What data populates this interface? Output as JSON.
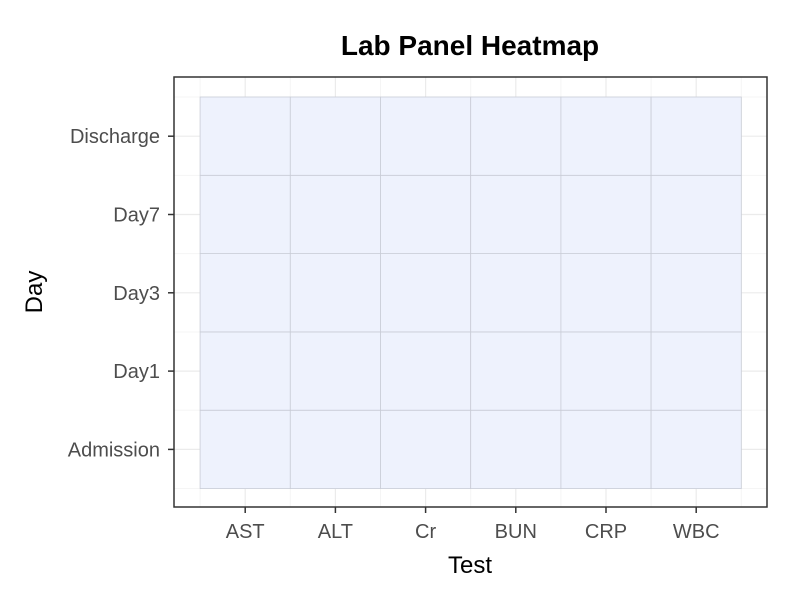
{
  "chart_data": {
    "type": "heatmap",
    "title": "Lab Panel Heatmap",
    "xlabel": "Test",
    "ylabel": "Day",
    "x_categories": [
      "AST",
      "ALT",
      "Cr",
      "BUN",
      "CRP",
      "WBC"
    ],
    "y_categories": [
      "Admission",
      "Day1",
      "Day3",
      "Day7",
      "Discharge"
    ],
    "cell_color": "#eef2fd",
    "cell_border_color": "#c9ccd6",
    "grid": true,
    "legend": "none",
    "colors": {
      "panel_border": "#333333",
      "grid_major": "#ebebeb",
      "grid_minor": "#f5f5f5",
      "tick_mark": "#333333",
      "tick_label": "#4d4d4d"
    }
  }
}
